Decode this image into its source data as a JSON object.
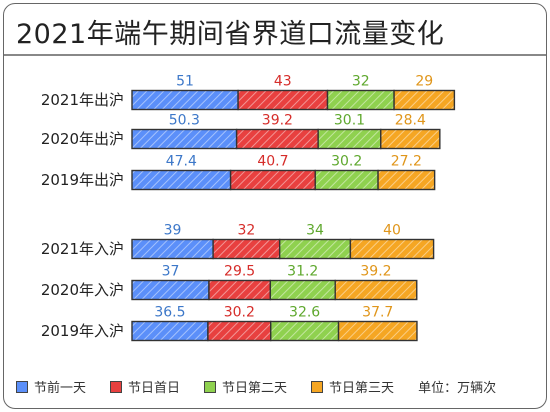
{
  "title": "2021年端午期间省界道口流量变化",
  "unit_label": "单位：万辆次",
  "colors": {
    "s0": "#5b8ff9",
    "s1": "#e8403f",
    "s2": "#8fd14f",
    "s3": "#f5a623",
    "label_s0": "#3d78c9",
    "label_s1": "#d62d2a",
    "label_s2": "#5fa82e",
    "label_s3": "#e0961b"
  },
  "chart_data": {
    "type": "bar",
    "orientation": "horizontal",
    "stacked": true,
    "categories": [
      "2021年出沪",
      "2020年出沪",
      "2019年出沪",
      "2021年入沪",
      "2020年入沪",
      "2019年入沪"
    ],
    "series": [
      {
        "name": "节前一天",
        "values": [
          51,
          50.3,
          47.4,
          39,
          37,
          36.5
        ],
        "labels": [
          "51",
          "50.3",
          "47.4",
          "39",
          "37",
          "36.5"
        ]
      },
      {
        "name": "节日首日",
        "values": [
          43,
          39.2,
          40.7,
          32,
          29.5,
          30.2
        ],
        "labels": [
          "43",
          "39.2",
          "40.7",
          "32",
          "29.5",
          "30.2"
        ]
      },
      {
        "name": "节日第二天",
        "values": [
          32,
          30.1,
          30.2,
          34,
          31.2,
          32.6
        ],
        "labels": [
          "32",
          "30.1",
          "30.2",
          "34",
          "31.2",
          "32.6"
        ]
      },
      {
        "name": "节日第三天",
        "values": [
          29,
          28.4,
          27.2,
          40,
          39.2,
          37.7
        ],
        "labels": [
          "29",
          "28.4",
          "27.2",
          "40",
          "39.2",
          "37.7"
        ]
      }
    ],
    "grid": false,
    "legend": "bottom",
    "xlabel": "",
    "ylabel": ""
  }
}
